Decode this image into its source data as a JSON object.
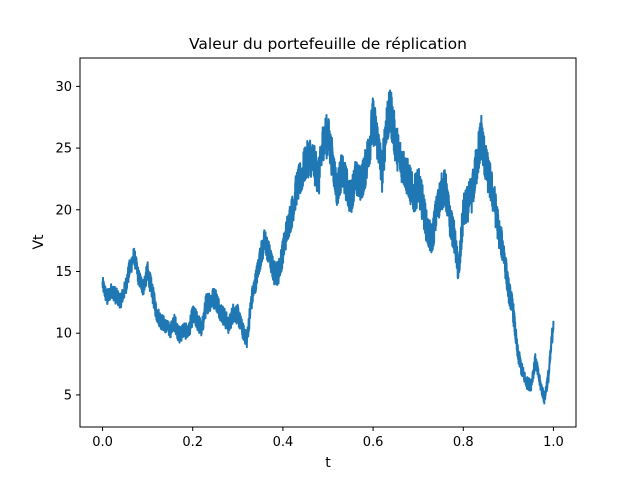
{
  "chart_data": {
    "type": "line",
    "title": "Valeur du portefeuille de réplication",
    "xlabel": "t",
    "ylabel": "Vt",
    "xlim": [
      -0.05,
      1.05
    ],
    "ylim": [
      2.4,
      32.3
    ],
    "x_ticks": [
      0.0,
      0.2,
      0.4,
      0.6,
      0.8,
      1.0
    ],
    "x_tick_labels": [
      "0.0",
      "0.2",
      "0.4",
      "0.6",
      "0.8",
      "1.0"
    ],
    "y_ticks": [
      5,
      10,
      15,
      20,
      25,
      30
    ],
    "y_tick_labels": [
      "5",
      "10",
      "15",
      "20",
      "25",
      "30"
    ],
    "grid": false,
    "legend": "none",
    "series": [
      {
        "color": "#1f77b4",
        "x": [
          0.0,
          0.01,
          0.02,
          0.03,
          0.04,
          0.05,
          0.06,
          0.07,
          0.08,
          0.09,
          0.1,
          0.11,
          0.12,
          0.13,
          0.14,
          0.15,
          0.16,
          0.17,
          0.18,
          0.19,
          0.2,
          0.21,
          0.22,
          0.23,
          0.24,
          0.25,
          0.26,
          0.27,
          0.28,
          0.29,
          0.3,
          0.31,
          0.32,
          0.33,
          0.34,
          0.35,
          0.36,
          0.37,
          0.38,
          0.39,
          0.4,
          0.41,
          0.42,
          0.43,
          0.44,
          0.45,
          0.46,
          0.47,
          0.48,
          0.49,
          0.5,
          0.51,
          0.52,
          0.53,
          0.54,
          0.55,
          0.56,
          0.57,
          0.58,
          0.59,
          0.6,
          0.61,
          0.62,
          0.63,
          0.64,
          0.65,
          0.66,
          0.67,
          0.68,
          0.69,
          0.7,
          0.71,
          0.72,
          0.73,
          0.74,
          0.75,
          0.76,
          0.77,
          0.78,
          0.79,
          0.8,
          0.81,
          0.82,
          0.83,
          0.84,
          0.85,
          0.86,
          0.87,
          0.88,
          0.89,
          0.9,
          0.91,
          0.92,
          0.93,
          0.94,
          0.95,
          0.96,
          0.97,
          0.98,
          0.99,
          1.0
        ],
        "y": [
          14.0,
          12.8,
          13.5,
          13.0,
          12.6,
          13.6,
          15.2,
          16.3,
          14.5,
          13.7,
          15.0,
          13.4,
          11.6,
          11.0,
          10.6,
          10.2,
          10.9,
          9.8,
          10.3,
          10.0,
          11.5,
          11.0,
          10.3,
          12.4,
          12.7,
          12.9,
          11.9,
          11.3,
          10.6,
          11.7,
          11.5,
          10.3,
          9.4,
          12.6,
          14.3,
          16.2,
          17.5,
          16.3,
          14.9,
          14.9,
          16.6,
          18.6,
          19.8,
          21.7,
          22.6,
          23.8,
          24.4,
          23.6,
          22.6,
          25.8,
          26.0,
          24.0,
          21.6,
          23.1,
          22.2,
          20.8,
          22.6,
          22.1,
          22.8,
          24.8,
          27.3,
          25.6,
          23.0,
          27.3,
          27.8,
          25.4,
          24.2,
          23.2,
          22.3,
          21.1,
          22.0,
          20.5,
          18.3,
          17.5,
          19.7,
          21.4,
          21.8,
          19.2,
          17.8,
          14.8,
          19.8,
          20.5,
          21.4,
          23.8,
          26.0,
          23.6,
          22.2,
          20.4,
          18.0,
          16.5,
          13.6,
          12.0,
          8.5,
          7.0,
          6.0,
          5.8,
          7.8,
          6.0,
          4.7,
          6.8,
          11.0
        ],
        "noise": [
          0.6,
          0.7,
          0.6,
          0.7,
          0.6,
          0.7,
          0.8,
          0.7,
          0.7,
          0.7,
          0.8,
          0.8,
          0.7,
          0.7,
          0.6,
          0.6,
          0.7,
          0.7,
          0.7,
          0.6,
          0.8,
          0.8,
          0.7,
          0.9,
          0.9,
          0.9,
          0.8,
          0.8,
          0.7,
          0.8,
          0.8,
          0.7,
          0.6,
          0.9,
          0.9,
          1.0,
          1.1,
          1.0,
          1.0,
          1.0,
          1.1,
          1.2,
          1.3,
          1.4,
          1.5,
          1.5,
          1.6,
          1.6,
          1.6,
          1.8,
          1.8,
          1.6,
          1.4,
          1.5,
          1.5,
          1.4,
          1.5,
          1.5,
          1.6,
          1.7,
          2.0,
          1.8,
          1.6,
          2.0,
          2.0,
          1.8,
          1.7,
          1.6,
          1.6,
          1.5,
          1.6,
          1.5,
          1.3,
          1.3,
          1.5,
          1.5,
          1.6,
          1.4,
          1.3,
          1.1,
          1.5,
          1.5,
          1.6,
          1.8,
          1.9,
          1.7,
          1.6,
          1.5,
          1.3,
          1.2,
          1.0,
          0.9,
          0.7,
          0.6,
          0.5,
          0.5,
          0.6,
          0.5,
          0.5,
          0.6,
          0.8
        ]
      }
    ]
  }
}
